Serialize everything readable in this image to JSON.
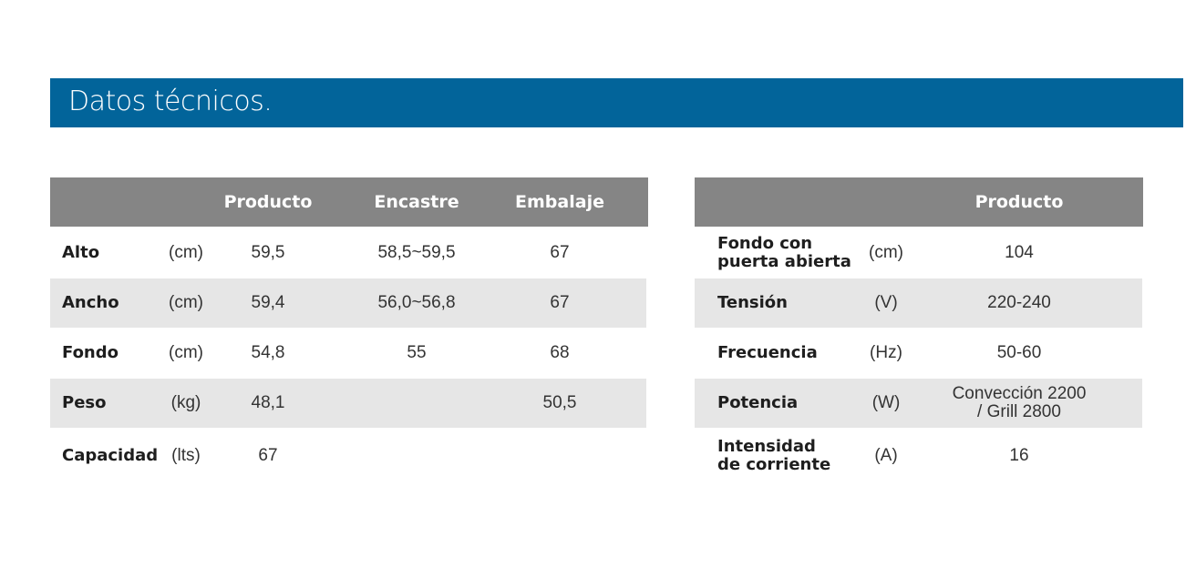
{
  "title": "Datos técnicos.",
  "colors": {
    "banner": "#02649a",
    "header": "#858585",
    "stripe": "#e6e6e6"
  },
  "left_table": {
    "headers": [
      "Producto",
      "Encastre",
      "Embalaje"
    ],
    "rows": [
      {
        "label": "Alto",
        "unit": "(cm)",
        "producto": "59,5",
        "encastre": "58,5~59,5",
        "embalaje": "67"
      },
      {
        "label": "Ancho",
        "unit": "(cm)",
        "producto": "59,4",
        "encastre": "56,0~56,8",
        "embalaje": "67"
      },
      {
        "label": "Fondo",
        "unit": "(cm)",
        "producto": "54,8",
        "encastre": "55",
        "embalaje": "68"
      },
      {
        "label": "Peso",
        "unit": "(kg)",
        "producto": "48,1",
        "encastre": "",
        "embalaje": "50,5"
      },
      {
        "label": "Capacidad",
        "unit": "(lts)",
        "producto": "67",
        "encastre": "",
        "embalaje": ""
      }
    ]
  },
  "right_table": {
    "headers": [
      "Producto"
    ],
    "rows": [
      {
        "label1": "Fondo con",
        "label2": "puerta abierta",
        "unit": "(cm)",
        "value1": "104",
        "value2": ""
      },
      {
        "label1": "Tensión",
        "label2": "",
        "unit": "(V)",
        "value1": "220-240",
        "value2": ""
      },
      {
        "label1": "Frecuencia",
        "label2": "",
        "unit": "(Hz)",
        "value1": "50-60",
        "value2": ""
      },
      {
        "label1": "Potencia",
        "label2": "",
        "unit": "(W)",
        "value1": "Convección 2200",
        "value2": "/ Grill 2800"
      },
      {
        "label1": "Intensidad",
        "label2": "de corriente",
        "unit": "(A)",
        "value1": "16",
        "value2": ""
      }
    ]
  }
}
